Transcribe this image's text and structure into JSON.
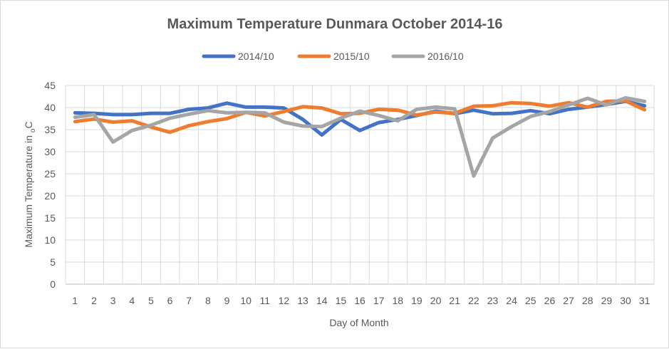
{
  "chart_data": {
    "type": "line",
    "title": "Maximum Temperature Dunmara October 2014-16",
    "xlabel": "Day of Month",
    "ylabel_main": "Maximum Temperature in ",
    "ylabel_sub": "o",
    "ylabel_end": "C",
    "ylim": [
      0,
      45
    ],
    "yticks": [
      0,
      5,
      10,
      15,
      20,
      25,
      30,
      35,
      40,
      45
    ],
    "grid": true,
    "legend_position": "top",
    "categories": [
      "1",
      "2",
      "3",
      "4",
      "5",
      "6",
      "7",
      "8",
      "9",
      "10",
      "11",
      "12",
      "13",
      "14",
      "15",
      "16",
      "17",
      "18",
      "19",
      "20",
      "21",
      "22",
      "23",
      "24",
      "25",
      "26",
      "27",
      "28",
      "29",
      "30",
      "31"
    ],
    "series": [
      {
        "name": "2014/10",
        "color": "#4472c4",
        "values": [
          38.8,
          38.7,
          38.4,
          38.4,
          38.7,
          38.7,
          39.6,
          39.9,
          41.0,
          40.1,
          40.1,
          39.9,
          37.3,
          33.8,
          37.3,
          34.8,
          36.6,
          37.3,
          38.2,
          39.2,
          38.6,
          39.4,
          38.6,
          38.7,
          39.3,
          38.6,
          39.6,
          40.1,
          40.7,
          41.4,
          40.4
        ]
      },
      {
        "name": "2015/10",
        "color": "#ed7d31",
        "values": [
          36.8,
          37.4,
          36.7,
          37.0,
          35.6,
          34.4,
          35.9,
          36.8,
          37.5,
          38.9,
          38.1,
          39.1,
          40.2,
          39.9,
          38.6,
          38.7,
          39.6,
          39.4,
          38.3,
          39.0,
          38.7,
          40.3,
          40.4,
          41.1,
          40.9,
          40.3,
          41.1,
          40.1,
          41.4,
          41.5,
          39.5
        ]
      },
      {
        "name": "2016/10",
        "color": "#a5a5a5",
        "values": [
          37.8,
          38.4,
          32.2,
          34.8,
          36.0,
          37.6,
          38.5,
          39.3,
          38.8,
          38.9,
          38.8,
          36.7,
          35.8,
          35.7,
          37.6,
          39.2,
          38.2,
          37.0,
          39.6,
          40.1,
          39.7,
          24.5,
          33.1,
          35.7,
          38.0,
          39.1,
          40.6,
          42.1,
          40.6,
          42.2,
          41.4
        ]
      }
    ]
  }
}
